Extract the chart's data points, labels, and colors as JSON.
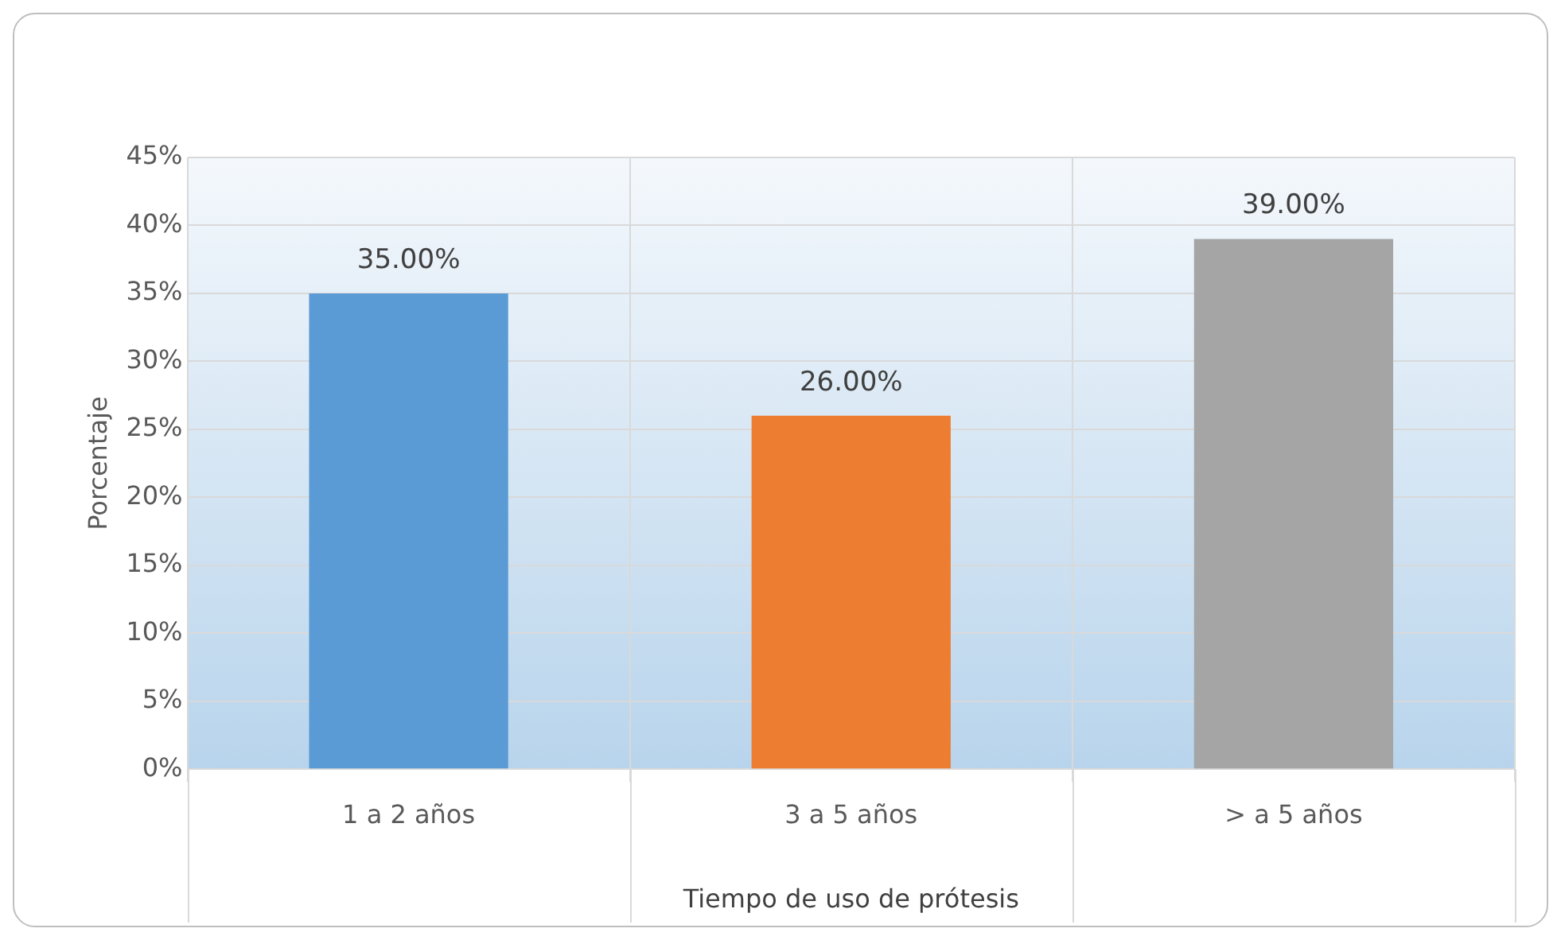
{
  "chart_data": {
    "type": "bar",
    "xlabel": "Tiempo de uso de prótesis",
    "ylabel": "Porcentaje",
    "categories": [
      "1 a 2 años",
      "3 a 5 años",
      "> a 5 años"
    ],
    "values": [
      35,
      26,
      39
    ],
    "colors": [
      "#5b9bd5",
      "#ed7d31",
      "#a5a5a5"
    ],
    "value_labels": [
      "35.00%",
      "26.00%",
      "39.00%"
    ],
    "ylim": [
      0,
      45
    ],
    "yticks": [
      {
        "value": 0,
        "label": "0%"
      },
      {
        "value": 5,
        "label": "5%"
      },
      {
        "value": 10,
        "label": "10%"
      },
      {
        "value": 15,
        "label": "15%"
      },
      {
        "value": 20,
        "label": "20%"
      },
      {
        "value": 25,
        "label": "25%"
      },
      {
        "value": 30,
        "label": "30%"
      },
      {
        "value": 35,
        "label": "35%"
      },
      {
        "value": 40,
        "label": "40%"
      },
      {
        "value": 45,
        "label": "45%"
      }
    ],
    "grid": true,
    "legend": false
  }
}
